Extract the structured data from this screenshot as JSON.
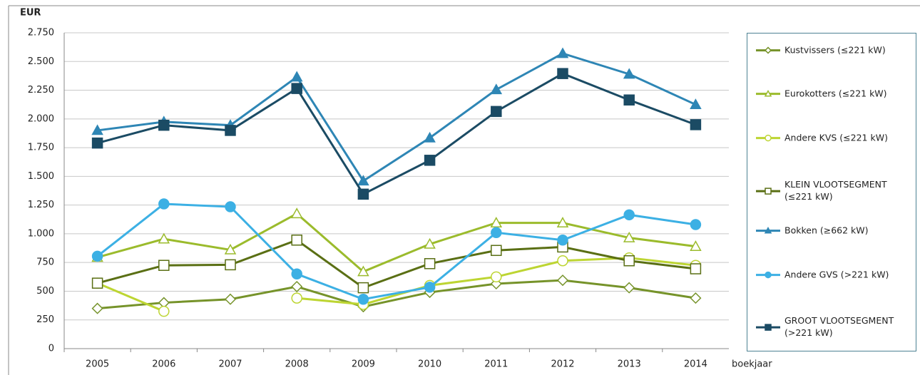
{
  "chart_data": {
    "type": "line",
    "y_label": "EUR",
    "x_label": "boekjaar",
    "categories": [
      "2005",
      "2006",
      "2007",
      "2008",
      "2009",
      "2010",
      "2011",
      "2012",
      "2013",
      "2014"
    ],
    "ylim": [
      0,
      2750
    ],
    "yticks": [
      0,
      250,
      500,
      750,
      {
        "value": 1000,
        "label": "1.000"
      },
      {
        "value": 1250,
        "label": "1.250"
      },
      {
        "value": 1500,
        "label": "1.500"
      },
      {
        "value": 1750,
        "label": "1.750"
      },
      {
        "value": 2000,
        "label": "2.000"
      },
      {
        "value": 2250,
        "label": "2.250"
      },
      {
        "value": 2500,
        "label": "2.500"
      },
      {
        "value": 2750,
        "label": "2.750"
      }
    ],
    "grid": true,
    "legend": "right",
    "series": [
      {
        "name": "Kustvissers (≤221 kW)",
        "color": "#76932a",
        "marker": "diamond",
        "filled": false,
        "values": [
          350,
          400,
          430,
          540,
          365,
          490,
          565,
          595,
          530,
          440
        ]
      },
      {
        "name": "Eurokotters (≤221 kW)",
        "color": "#9bbb2c",
        "marker": "triangle",
        "filled": false,
        "values": [
          795,
          955,
          860,
          1175,
          670,
          910,
          1095,
          1095,
          965,
          890
        ]
      },
      {
        "name": "Andere KVS (≤221 kW)",
        "color": "#bdd532",
        "marker": "circle",
        "filled": false,
        "values": [
          570,
          325,
          null,
          440,
          385,
          550,
          625,
          765,
          790,
          725
        ]
      },
      {
        "name": "KLEIN VLOOTSEGMENT (≤221 kW)",
        "color": "#5a6f14",
        "marker": "square",
        "filled": false,
        "values": [
          570,
          725,
          730,
          945,
          530,
          740,
          855,
          885,
          765,
          695
        ]
      },
      {
        "name": "Bokken (≥662 kW)",
        "color": "#2e86b5",
        "marker": "triangle",
        "filled": true,
        "values": [
          1900,
          1975,
          1945,
          2365,
          1460,
          1835,
          2255,
          2570,
          2390,
          2125
        ]
      },
      {
        "name": "Andere GVS (>221 kW)",
        "color": "#3cb0e4",
        "marker": "circle",
        "filled": true,
        "values": [
          805,
          1260,
          1235,
          650,
          430,
          535,
          1010,
          945,
          1165,
          1080
        ]
      },
      {
        "name": "GROOT VLOOTSEGMENT (>221 kW)",
        "color": "#1b4b64",
        "marker": "square",
        "filled": true,
        "values": [
          1790,
          1945,
          1900,
          2265,
          1345,
          1640,
          2065,
          2395,
          2165,
          1950
        ]
      }
    ]
  }
}
